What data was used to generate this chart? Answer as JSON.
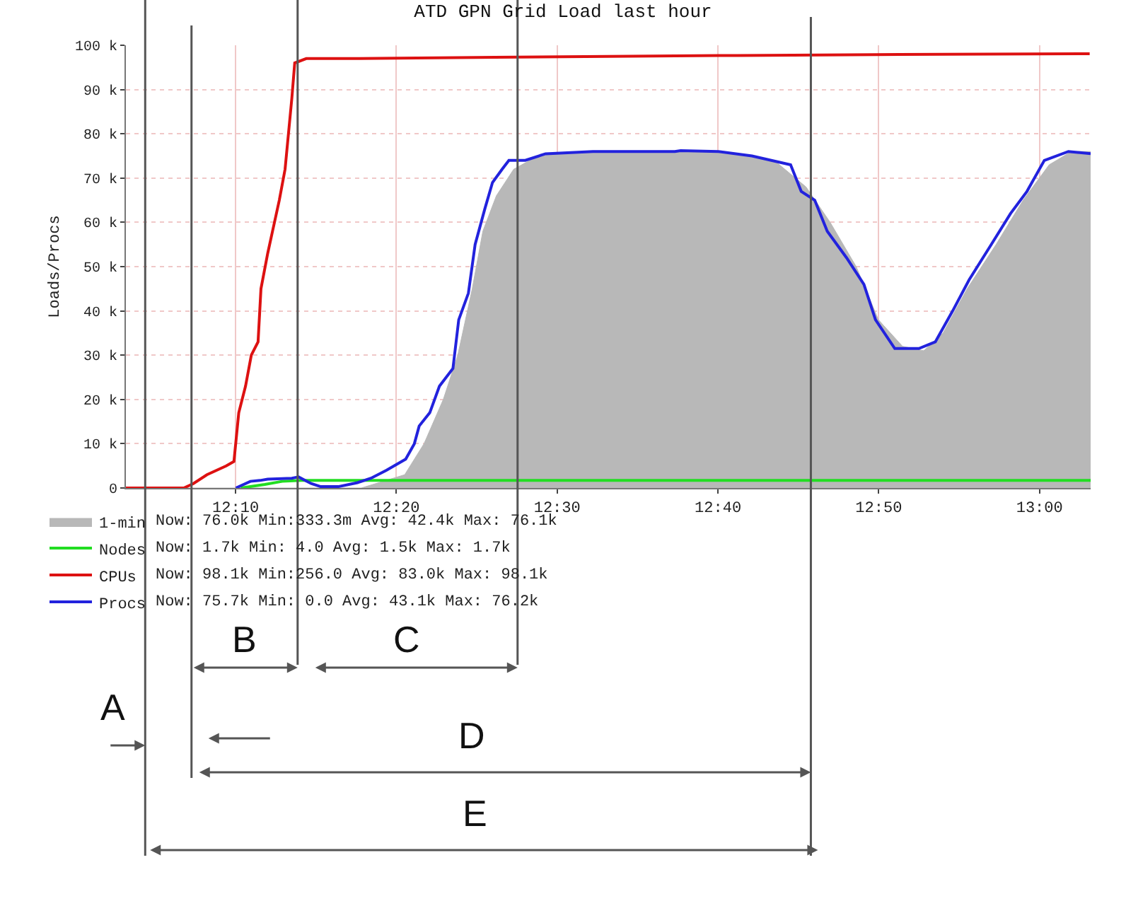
{
  "chart_data": {
    "type": "line",
    "title": "ATD GPN Grid Load last hour",
    "ylabel": "Loads/Procs",
    "xlim": [
      12.053,
      13.053
    ],
    "xticks": [
      {
        "value": 12.1667,
        "label": "12:10"
      },
      {
        "value": 12.3333,
        "label": "12:20"
      },
      {
        "value": 12.5,
        "label": "12:30"
      },
      {
        "value": 12.6667,
        "label": "12:40"
      },
      {
        "value": 12.8333,
        "label": "12:50"
      },
      {
        "value": 13,
        "label": "13:00"
      }
    ],
    "ylim": [
      0,
      100000
    ],
    "yticks": [
      0,
      {
        "value": 10000,
        "label": "10 k"
      },
      {
        "value": 20000,
        "label": "20 k"
      },
      {
        "value": 30000,
        "label": "30 k"
      },
      {
        "value": 40000,
        "label": "40 k"
      },
      {
        "value": 50000,
        "label": "50 k"
      },
      {
        "value": 60000,
        "label": "60 k"
      },
      {
        "value": 70000,
        "label": "70 k"
      },
      {
        "value": 80000,
        "label": "80 k"
      },
      {
        "value": 90000,
        "label": "90 k"
      },
      {
        "value": 100000,
        "label": "100 k"
      }
    ],
    "grid": true,
    "legend": "bottom left",
    "marker": "none",
    "line_style": "solid",
    "series": [
      {
        "name": "1-min",
        "type": "area",
        "color": "#b8b8b8",
        "x": [
          12.053,
          12.297,
          12.342,
          12.362,
          12.382,
          12.397,
          12.412,
          12.423,
          12.437,
          12.455,
          12.48,
          12.537,
          12.667,
          12.725,
          12.758,
          12.783,
          12.81,
          12.833,
          12.858,
          12.88,
          12.9,
          12.925,
          12.955,
          12.983,
          13.01,
          13.033,
          13.053
        ],
        "values": [
          0,
          0,
          3000,
          10000,
          20000,
          30000,
          45000,
          58000,
          66000,
          72000,
          75000,
          76000,
          76000,
          74000,
          68000,
          60000,
          50000,
          38000,
          32000,
          31000,
          35000,
          45000,
          55000,
          65000,
          73000,
          76000,
          76000
        ]
      },
      {
        "name": "Nodes",
        "color": "#22dd22",
        "x": [
          12.172,
          12.197,
          12.215,
          12.235,
          13.053
        ],
        "values": [
          0,
          800,
          1500,
          1700,
          1700
        ]
      },
      {
        "name": "CPUs",
        "color": "#dd1111",
        "x": [
          12.053,
          12.113,
          12.123,
          12.137,
          12.157,
          12.165,
          12.17,
          12.177,
          12.183,
          12.19,
          12.193,
          12.2,
          12.205,
          12.212,
          12.218,
          12.225,
          12.228,
          12.24,
          12.288,
          12.435,
          12.553,
          12.687,
          12.83,
          13.052
        ],
        "values": [
          0,
          0,
          1000,
          3000,
          5000,
          6000,
          17000,
          23000,
          30000,
          33000,
          45000,
          53000,
          58000,
          65000,
          72000,
          88000,
          96000,
          97000,
          97000,
          97300,
          97500,
          97700,
          97900,
          98100
        ]
      },
      {
        "name": "Procs",
        "color": "#2222dd",
        "x": [
          12.167,
          12.182,
          12.192,
          12.2,
          12.225,
          12.232,
          12.245,
          12.255,
          12.273,
          12.293,
          12.307,
          12.323,
          12.343,
          12.352,
          12.357,
          12.368,
          12.378,
          12.392,
          12.398,
          12.408,
          12.415,
          12.425,
          12.433,
          12.443,
          12.45,
          12.467,
          12.488,
          12.537,
          12.622,
          12.628,
          12.667,
          12.702,
          12.742,
          12.753,
          12.767,
          12.78,
          12.8,
          12.818,
          12.83,
          12.85,
          12.875,
          12.892,
          12.91,
          12.927,
          12.95,
          12.97,
          12.987,
          13.005,
          13.03,
          13.053
        ],
        "values": [
          0,
          1500,
          1700,
          2000,
          2200,
          2500,
          1000,
          300,
          300,
          1200,
          2200,
          4000,
          6500,
          10000,
          14000,
          17000,
          23000,
          27000,
          38000,
          44000,
          55000,
          63000,
          69000,
          72000,
          74000,
          74000,
          75500,
          76000,
          76000,
          76200,
          76000,
          75000,
          73000,
          67000,
          65000,
          58000,
          52000,
          46000,
          38000,
          31500,
          31500,
          33000,
          40000,
          47000,
          55000,
          62000,
          67000,
          74000,
          76000,
          75500
        ]
      }
    ],
    "ref_lines": [
      {
        "axis": "x",
        "value": 12.073,
        "color": "#555555"
      },
      {
        "axis": "x",
        "value": 12.121,
        "color": "#555555"
      },
      {
        "axis": "x",
        "value": 12.231,
        "color": "#555555"
      },
      {
        "axis": "x",
        "value": 12.459,
        "color": "#555555"
      },
      {
        "axis": "x",
        "value": 12.763,
        "color": "#555555"
      }
    ],
    "annotations": [
      "Now: 76.0k Min:333.3m Avg: 42.4k Max: 76.1k",
      "Now: 1.7k Min: 4.0 Avg: 1.5k Max: 1.7k",
      "Now: 98.1k Min:256.0 Avg: 83.0k Max: 98.1k",
      "Now: 75.7k Min: 0.0 Avg: 43.1k Max: 76.2k",
      "A",
      "B",
      "C",
      "D",
      "E"
    ]
  }
}
